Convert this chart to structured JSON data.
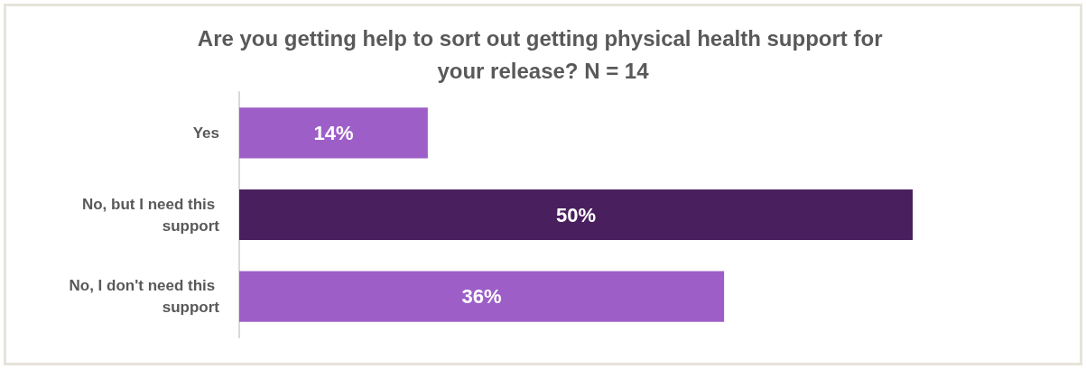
{
  "chart_data": {
    "type": "bar",
    "orientation": "horizontal",
    "title": "Are you getting help to sort out getting physical health support for your release? N = 14",
    "categories": [
      "Yes",
      "No, but I need this support",
      "No, I don't need this support"
    ],
    "values": [
      14,
      50,
      36
    ],
    "colors": [
      "#9d5fc7",
      "#4a1f5e",
      "#9d5fc7"
    ],
    "value_labels": [
      "14%",
      "50%",
      "36%"
    ]
  }
}
